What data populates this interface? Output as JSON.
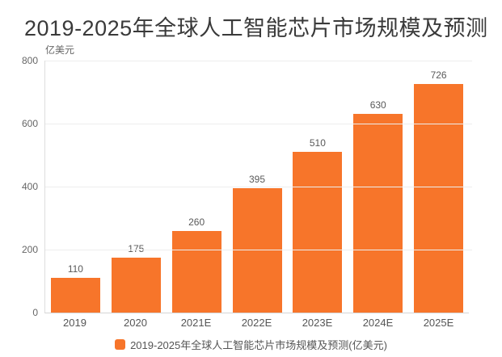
{
  "colors": {
    "background": "#ffffff",
    "bar": "#f7752a",
    "title_text": "#3a3a3a",
    "axis_unit_text": "#666666",
    "y_tick_text": "#666666",
    "x_tick_text": "#555555",
    "value_label_text": "#595959",
    "grid_line": "#ededed",
    "axis_line": "#d5d5d5",
    "legend_text": "#555555"
  },
  "chart_data": {
    "type": "bar",
    "title": "2019-2025年全球人工智能芯片市场规模及预测",
    "unit_label": "亿美元",
    "categories": [
      "2019",
      "2020",
      "2021E",
      "2022E",
      "2023E",
      "2024E",
      "2025E"
    ],
    "values": [
      110,
      175,
      260,
      395,
      510,
      630,
      726
    ],
    "ylim": [
      0,
      800
    ],
    "yticks": [
      0,
      200,
      400,
      600,
      800
    ],
    "grid": true,
    "legend": {
      "label": "2019-2025年全球人工智能芯片市场规模及预测(亿美元)",
      "position": "bottom"
    }
  }
}
